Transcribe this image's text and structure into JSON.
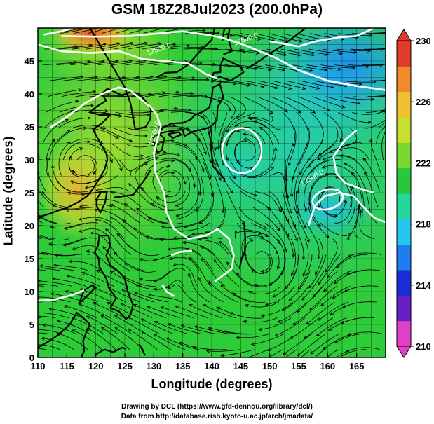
{
  "title": "GSM 18Z28Jul2023 (200.0hPa)",
  "x_axis": {
    "label": "Longitude (degrees)",
    "range": [
      110,
      170
    ],
    "ticks": [
      "110",
      "115",
      "120",
      "125",
      "130",
      "135",
      "140",
      "145",
      "150",
      "155",
      "160",
      "165"
    ]
  },
  "y_axis": {
    "label": "Latitude (degrees)",
    "range": [
      0,
      50
    ],
    "ticks": [
      "0",
      "5",
      "10",
      "15",
      "20",
      "25",
      "30",
      "35",
      "40",
      "45"
    ]
  },
  "colorbar": {
    "range": [
      210,
      230
    ],
    "tick_labels": [
      "210",
      "214",
      "218",
      "222",
      "226",
      "230"
    ],
    "colors": [
      "#e040c8",
      "#6a1fc4",
      "#1a2fd8",
      "#1e7ef0",
      "#22c8ee",
      "#22d89a",
      "#28c83a",
      "#78d82e",
      "#c8e030",
      "#f0c030",
      "#f08a2a",
      "#e03a2a"
    ]
  },
  "contour_labels": [
    {
      "text": "12500.0",
      "lon": 146,
      "lat": 48
    },
    {
      "text": "12500.0",
      "lon": 131,
      "lat": 46.5
    },
    {
      "text": "12500.0",
      "lon": 130.5,
      "lat": 34
    },
    {
      "text": "12500.0",
      "lon": 157.5,
      "lat": 27
    }
  ],
  "credits": {
    "line1": "Drawing by DCL (https://www.gfd-dennou.org/library/dcl/)",
    "line2": "Data from http://database.rish.kyoto-u.ac.jp/arch/jmadata/"
  }
}
